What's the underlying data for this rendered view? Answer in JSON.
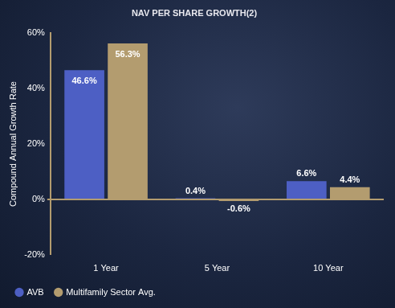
{
  "chart_data": {
    "type": "bar",
    "title": "NAV PER SHARE GROWTH(2)",
    "y_label": "Compound Annual Growth Rate",
    "categories": [
      "1 Year",
      "5 Year",
      "10 Year"
    ],
    "series": [
      {
        "name": "AVB",
        "color": "#4d5fc4",
        "values": [
          46.6,
          0.4,
          6.6
        ],
        "value_labels": [
          "46.6%",
          "0.4%",
          "6.6%"
        ]
      },
      {
        "name": "Multifamily Sector Avg.",
        "color": "#b39c6f",
        "values": [
          56.3,
          -0.6,
          4.4
        ],
        "value_labels": [
          "56.3%",
          "-0.6%",
          "4.4%"
        ]
      }
    ],
    "ylim": [
      -20,
      60
    ],
    "yticks": [
      {
        "value": -20,
        "label": "-20%"
      },
      {
        "value": 0,
        "label": "0%"
      },
      {
        "value": 20,
        "label": "20%"
      },
      {
        "value": 40,
        "label": "40%"
      },
      {
        "value": 60,
        "label": "60%"
      }
    ],
    "grid": false,
    "legend": "bottom-left",
    "data_labels": true
  }
}
